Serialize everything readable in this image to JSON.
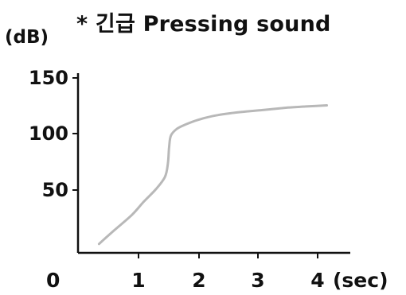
{
  "chart_data": {
    "type": "line",
    "title": "* 긴급 Pressing sound",
    "ylabel": "(dB)",
    "xlabel": "(sec)",
    "origin_label": "0",
    "x_ticks": [
      "1",
      "2",
      "3",
      "4"
    ],
    "y_ticks": [
      "50",
      "100",
      "150"
    ],
    "xlim": [
      0,
      4.3
    ],
    "ylim": [
      0,
      155
    ],
    "grid": false,
    "series": [
      {
        "color": "#b8b8b8",
        "x": [
          0.35,
          0.6,
          0.9,
          1.1,
          1.3,
          1.45,
          1.5,
          1.52,
          1.55,
          1.65,
          1.8,
          2.0,
          2.3,
          2.7,
          3.1,
          3.5,
          3.8,
          4.15
        ],
        "y": [
          8,
          20,
          34,
          46,
          57,
          68,
          80,
          95,
          105,
          111,
          115,
          119,
          123,
          126,
          128,
          130,
          131,
          132
        ]
      }
    ]
  }
}
